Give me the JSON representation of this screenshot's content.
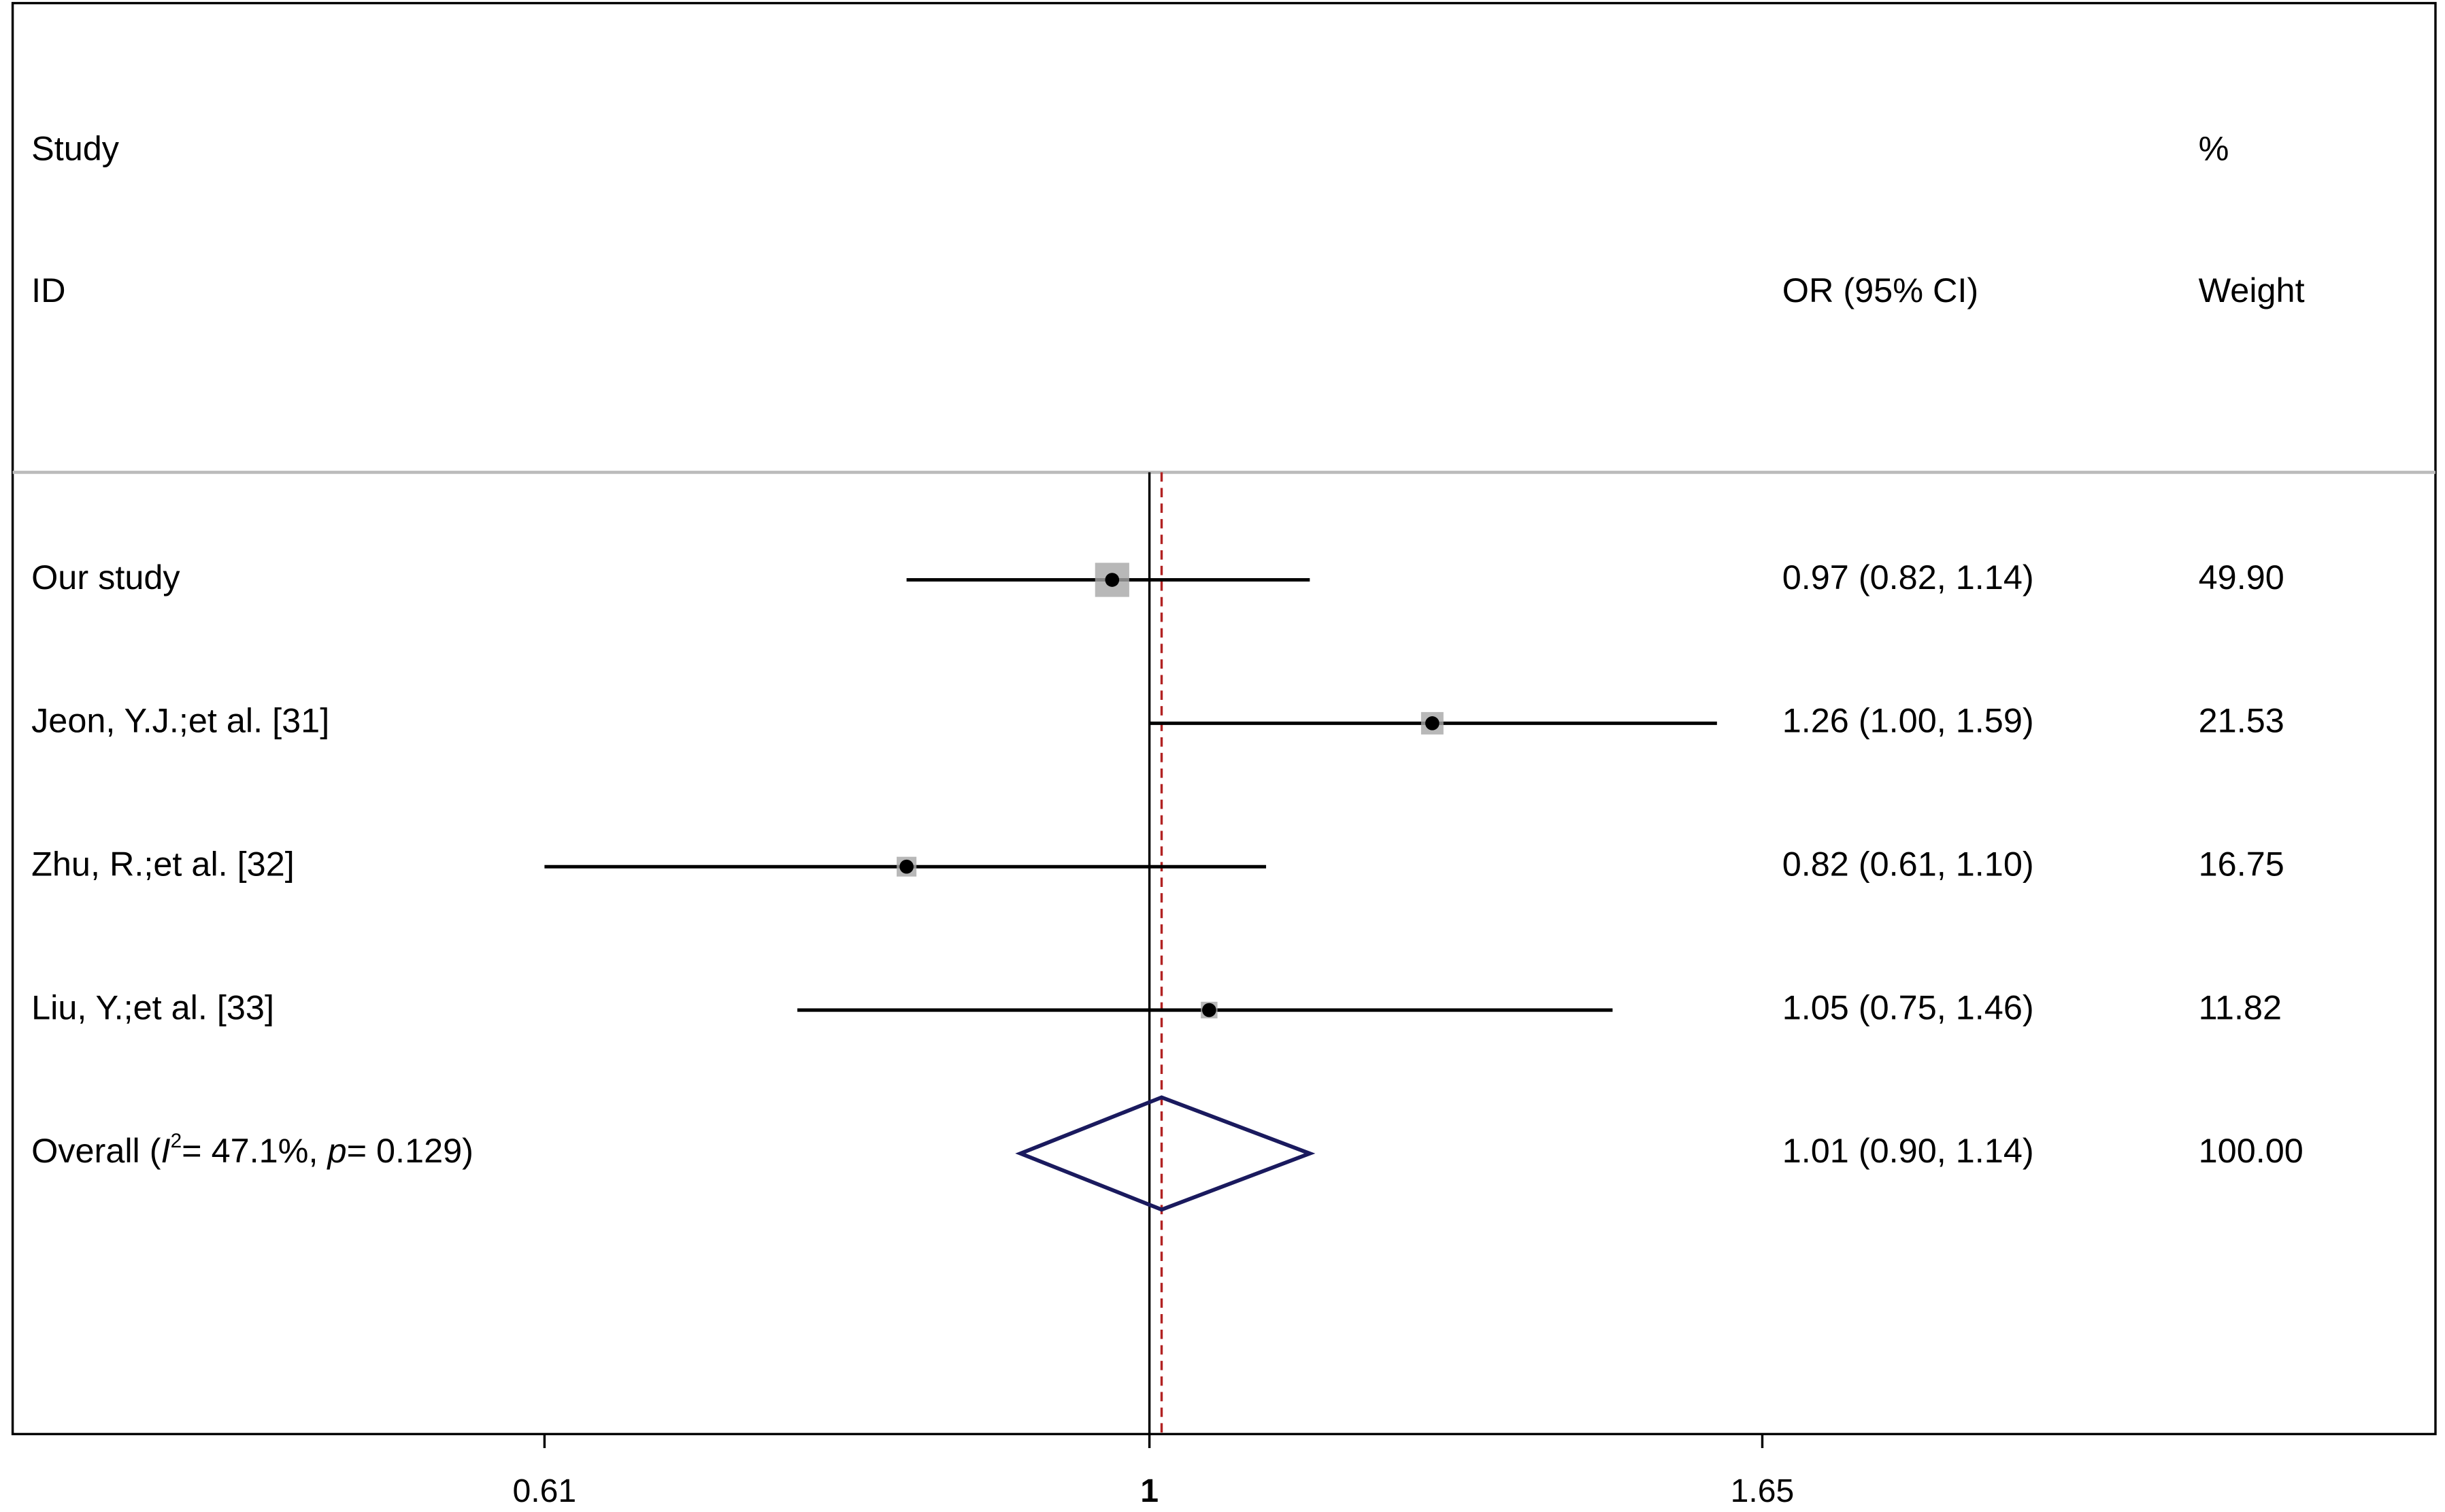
{
  "chart_data": {
    "type": "forest",
    "headers": {
      "study": "Study",
      "id": "ID",
      "estimate": "OR (95% CI)",
      "percent": "%",
      "weight": "Weight"
    },
    "categories": [
      "Our study",
      "Jeon, Y.J.;et al. [31]",
      "Zhu, R.;et al. [32]",
      "Liu, Y.;et al. [33]"
    ],
    "values": [
      0.97,
      1.26,
      0.82,
      1.05
    ],
    "ci_low": [
      0.82,
      1.0,
      0.61,
      0.75
    ],
    "ci_high": [
      1.14,
      1.59,
      1.1,
      1.46
    ],
    "value_labels": [
      "0.97 (0.82, 1.14)",
      "1.26 (1.00, 1.59)",
      "0.82 (0.61, 1.10)",
      "1.05 (0.75, 1.46)"
    ],
    "weights": [
      49.9,
      21.53,
      16.75,
      11.82
    ],
    "weight_labels": [
      "49.90",
      "21.53",
      "16.75",
      "11.82"
    ],
    "overall": {
      "label_parts": [
        "Overall  (",
        "I",
        "2",
        "= 47.1%, ",
        "p",
        "= 0.129)"
      ],
      "value": 1.01,
      "ci_low": 0.9,
      "ci_high": 1.14,
      "value_label": "1.01 (0.90, 1.14)",
      "weight": 100,
      "weight_label": "100.00"
    },
    "xscale": "log",
    "xlim": [
      0.395,
      2.86
    ],
    "xticks": [
      0.61,
      1,
      1.65
    ],
    "box_color": "#a6a6a6",
    "line_color": "#000000",
    "diamond_color": "#1a1a5e",
    "overall_line_color": "#b22222"
  }
}
